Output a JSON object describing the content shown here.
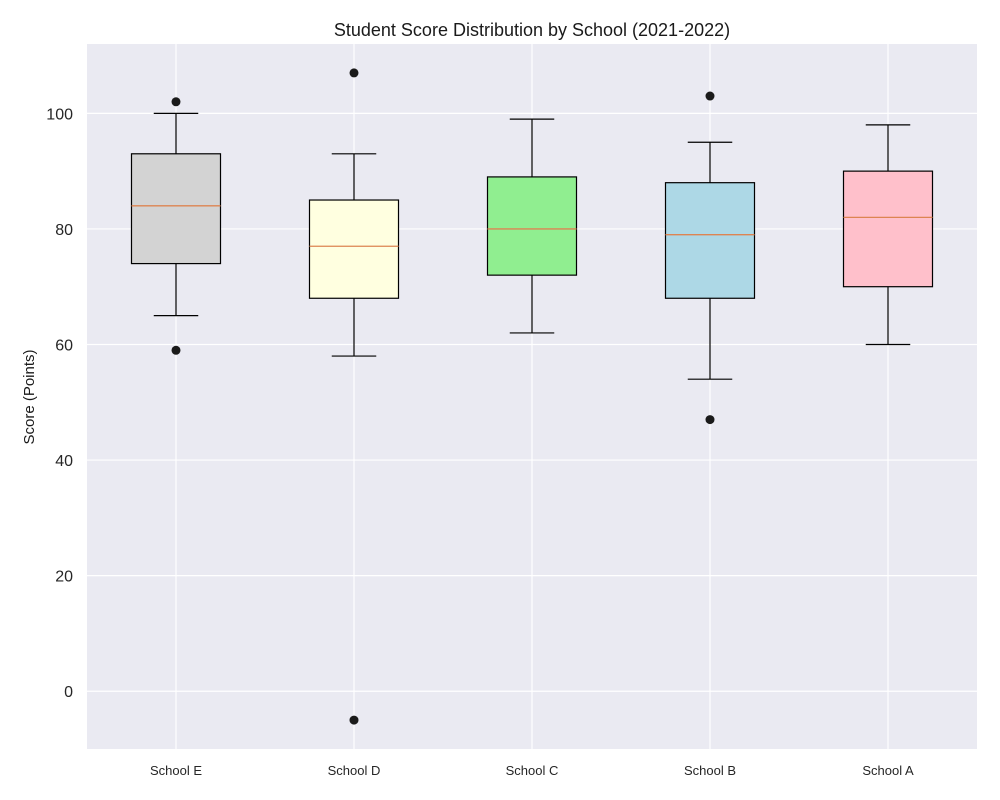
{
  "chart_data": {
    "type": "boxplot",
    "title": "Student Score Distribution by School (2021-2022)",
    "xlabel": "",
    "ylabel": "Score (Points)",
    "ylim": [
      -10,
      112
    ],
    "yticks": [
      0,
      20,
      40,
      60,
      80,
      100
    ],
    "grid": true,
    "categories": [
      "School E",
      "School D",
      "School C",
      "School B",
      "School A"
    ],
    "boxes": [
      {
        "whisker_low": 65,
        "q1": 74,
        "median": 84,
        "q3": 93,
        "whisker_high": 100,
        "outliers": [
          59,
          102
        ],
        "color": "#d3d3d3"
      },
      {
        "whisker_low": 58,
        "q1": 68,
        "median": 77,
        "q3": 85,
        "whisker_high": 93,
        "outliers": [
          -5,
          107
        ],
        "color": "#ffffe0"
      },
      {
        "whisker_low": 62,
        "q1": 72,
        "median": 80,
        "q3": 89,
        "whisker_high": 99,
        "outliers": [],
        "color": "#90ee90"
      },
      {
        "whisker_low": 54,
        "q1": 68,
        "median": 79,
        "q3": 88,
        "whisker_high": 95,
        "outliers": [
          47,
          103
        ],
        "color": "#add8e6"
      },
      {
        "whisker_low": 60,
        "q1": 70,
        "median": 82,
        "q3": 90,
        "whisker_high": 98,
        "outliers": [],
        "color": "#ffc0cb"
      }
    ],
    "colors": {
      "plot_background": "#eaeaf2",
      "grid": "#ffffff",
      "median_line": "#dd8452",
      "outline": "#000000",
      "outlier": "#1a1a1a"
    }
  }
}
